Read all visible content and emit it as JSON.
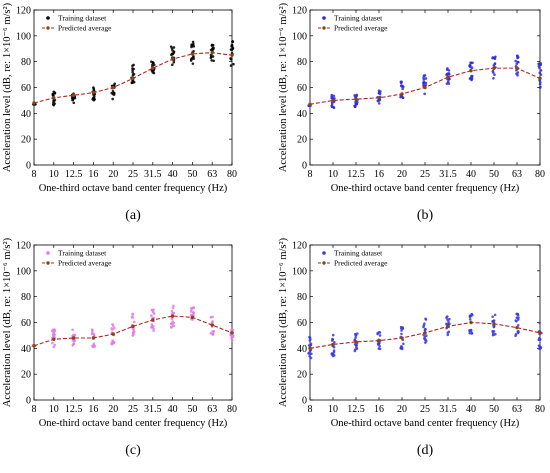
{
  "chart_data": [
    {
      "type": "scatter",
      "panel_label": "(a)",
      "xlabel": "One-third octave band center frequency (Hz)",
      "ylabel": "Acceleration level (dB, re: 1×10⁻⁶ m/s²)",
      "categories": [
        "8",
        "10",
        "12.5",
        "16",
        "20",
        "25",
        "31.5",
        "40",
        "50",
        "63",
        "80"
      ],
      "ylim": [
        0,
        120
      ],
      "yticks": [
        0,
        20,
        40,
        60,
        80,
        100,
        120
      ],
      "legend": {
        "placement": "top-left",
        "training_label": "Training dataset",
        "predicted_label": "Predicted average"
      },
      "colors": {
        "training": "#000000",
        "predicted": "#b22222",
        "predicted_marker": "#8b4513"
      },
      "training_ranges": [
        [
          47,
          47
        ],
        [
          45,
          57
        ],
        [
          48,
          57
        ],
        [
          50,
          60
        ],
        [
          51,
          66
        ],
        [
          62,
          78
        ],
        [
          70,
          83
        ],
        [
          77,
          92
        ],
        [
          78,
          97
        ],
        [
          80,
          96
        ],
        [
          76,
          96
        ]
      ],
      "predicted_average": [
        48,
        52,
        54,
        56,
        60,
        67,
        75,
        82,
        86,
        87,
        85
      ]
    },
    {
      "type": "scatter",
      "panel_label": "(b)",
      "xlabel": "One-third octave band center frequency (Hz)",
      "ylabel": "Acceleration level (dB, re: 1×10⁻⁶ m/s²)",
      "categories": [
        "8",
        "10",
        "12.5",
        "16",
        "20",
        "25",
        "31.5",
        "40",
        "50",
        "63",
        "80"
      ],
      "ylim": [
        0,
        120
      ],
      "yticks": [
        0,
        20,
        40,
        60,
        80,
        100,
        120
      ],
      "legend": {
        "placement": "top-left",
        "training_label": "Training dataset",
        "predicted_label": "Predicted average"
      },
      "colors": {
        "training": "#2b2bd9",
        "predicted": "#b22222",
        "predicted_marker": "#8b4513"
      },
      "training_ranges": [
        [
          46,
          46
        ],
        [
          44,
          56
        ],
        [
          45,
          55
        ],
        [
          46,
          58
        ],
        [
          50,
          65
        ],
        [
          55,
          70
        ],
        [
          62,
          76
        ],
        [
          64,
          81
        ],
        [
          67,
          84
        ],
        [
          67,
          85
        ],
        [
          58,
          80
        ]
      ],
      "predicted_average": [
        47,
        50,
        51,
        52,
        55,
        60,
        68,
        73,
        75,
        75,
        67
      ]
    },
    {
      "type": "scatter",
      "panel_label": "(c)",
      "xlabel": "One-third octave band center frequency (Hz)",
      "ylabel": "Acceleration level (dB, re: 1×10⁻⁶ m/s²)",
      "categories": [
        "8",
        "10",
        "12.5",
        "16",
        "20",
        "25",
        "31.5",
        "40",
        "50",
        "63",
        "80"
      ],
      "ylim": [
        0,
        120
      ],
      "yticks": [
        0,
        20,
        40,
        60,
        80,
        100,
        120
      ],
      "legend": {
        "placement": "top-left",
        "training_label": "Training dataset",
        "predicted_label": "Predicted average"
      },
      "colors": {
        "training": "#e07ae8",
        "predicted": "#b22222",
        "predicted_marker": "#8b4513"
      },
      "training_ranges": [
        [
          42,
          42
        ],
        [
          41,
          55
        ],
        [
          42,
          56
        ],
        [
          41,
          56
        ],
        [
          43,
          60
        ],
        [
          47,
          67
        ],
        [
          53,
          71
        ],
        [
          56,
          73
        ],
        [
          56,
          72
        ],
        [
          50,
          65
        ],
        [
          46,
          55
        ]
      ],
      "predicted_average": [
        42,
        47,
        48,
        48,
        51,
        57,
        62,
        65,
        64,
        58,
        52
      ]
    },
    {
      "type": "scatter",
      "panel_label": "(d)",
      "xlabel": "One-third octave band center frequency (Hz)",
      "ylabel": "Acceleration level (dB, re: 1×10⁻⁶ m/s²)",
      "categories": [
        "8",
        "10",
        "12.5",
        "16",
        "20",
        "25",
        "31.5",
        "40",
        "50",
        "63",
        "80"
      ],
      "ylim": [
        0,
        120
      ],
      "yticks": [
        0,
        20,
        40,
        60,
        80,
        100,
        120
      ],
      "legend": {
        "placement": "top-left",
        "training_label": "Training dataset",
        "predicted_label": "Predicted average"
      },
      "colors": {
        "training": "#3a3ae0",
        "predicted": "#b22222",
        "predicted_marker": "#8b4513"
      },
      "training_ranges": [
        [
          32,
          50
        ],
        [
          34,
          52
        ],
        [
          35,
          52
        ],
        [
          37,
          53
        ],
        [
          39,
          57
        ],
        [
          44,
          64
        ],
        [
          47,
          66
        ],
        [
          51,
          68
        ],
        [
          50,
          67
        ],
        [
          47,
          67
        ],
        [
          38,
          60
        ]
      ],
      "predicted_average": [
        40,
        43,
        45,
        46,
        48,
        52,
        57,
        60,
        59,
        56,
        52
      ]
    }
  ]
}
